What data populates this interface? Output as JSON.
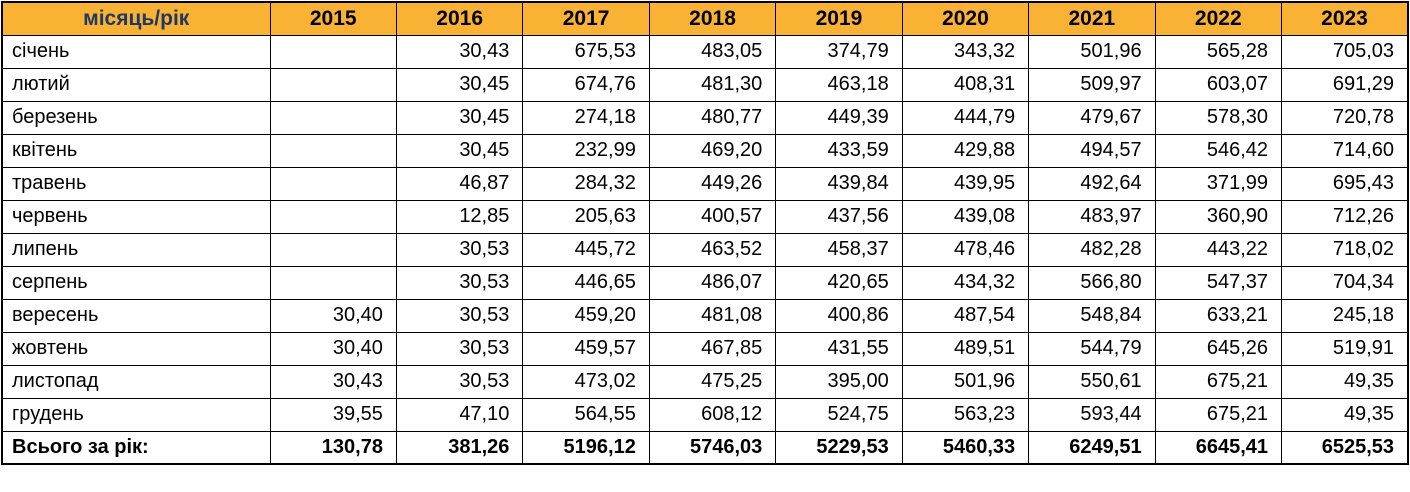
{
  "colors": {
    "header_bg": "#F9B233",
    "header_corner_text": "#1F3864",
    "border": "#000000",
    "body_text": "#000000"
  },
  "chart_data": {
    "type": "table",
    "title": "Monthly values by year (UAH), Ukrainian month names",
    "corner_label": "місяць/рік",
    "columns": [
      "місяць/рік",
      "2015",
      "2016",
      "2017",
      "2018",
      "2019",
      "2020",
      "2021",
      "2022",
      "2023"
    ],
    "rows": [
      [
        "січень",
        "",
        "30,43",
        "675,53",
        "483,05",
        "374,79",
        "343,32",
        "501,96",
        "565,28",
        "705,03"
      ],
      [
        "лютий",
        "",
        "30,45",
        "674,76",
        "481,30",
        "463,18",
        "408,31",
        "509,97",
        "603,07",
        "691,29"
      ],
      [
        "березень",
        "",
        "30,45",
        "274,18",
        "480,77",
        "449,39",
        "444,79",
        "479,67",
        "578,30",
        "720,78"
      ],
      [
        "квітень",
        "",
        "30,45",
        "232,99",
        "469,20",
        "433,59",
        "429,88",
        "494,57",
        "546,42",
        "714,60"
      ],
      [
        "травень",
        "",
        "46,87",
        "284,32",
        "449,26",
        "439,84",
        "439,95",
        "492,64",
        "371,99",
        "695,43"
      ],
      [
        "червень",
        "",
        "12,85",
        "205,63",
        "400,57",
        "437,56",
        "439,08",
        "483,97",
        "360,90",
        "712,26"
      ],
      [
        "липень",
        "",
        "30,53",
        "445,72",
        "463,52",
        "458,37",
        "478,46",
        "482,28",
        "443,22",
        "718,02"
      ],
      [
        "серпень",
        "",
        "30,53",
        "446,65",
        "486,07",
        "420,65",
        "434,32",
        "566,80",
        "547,37",
        "704,34"
      ],
      [
        "вересень",
        "30,40",
        "30,53",
        "459,20",
        "481,08",
        "400,86",
        "487,54",
        "548,84",
        "633,21",
        "245,18"
      ],
      [
        "жовтень",
        "30,40",
        "30,53",
        "459,57",
        "467,85",
        "431,55",
        "489,51",
        "544,79",
        "645,26",
        "519,91"
      ],
      [
        "листопад",
        "30,43",
        "30,53",
        "473,02",
        "475,25",
        "395,00",
        "501,96",
        "550,61",
        "675,21",
        "49,35"
      ],
      [
        "грудень",
        "39,55",
        "47,10",
        "564,55",
        "608,12",
        "524,75",
        "563,23",
        "593,44",
        "675,21",
        "49,35"
      ]
    ],
    "total_row": [
      "Всього за рік:",
      "130,78",
      "381,26",
      "5196,12",
      "5746,03",
      "5229,53",
      "5460,33",
      "6249,51",
      "6645,41",
      "6525,53"
    ]
  }
}
